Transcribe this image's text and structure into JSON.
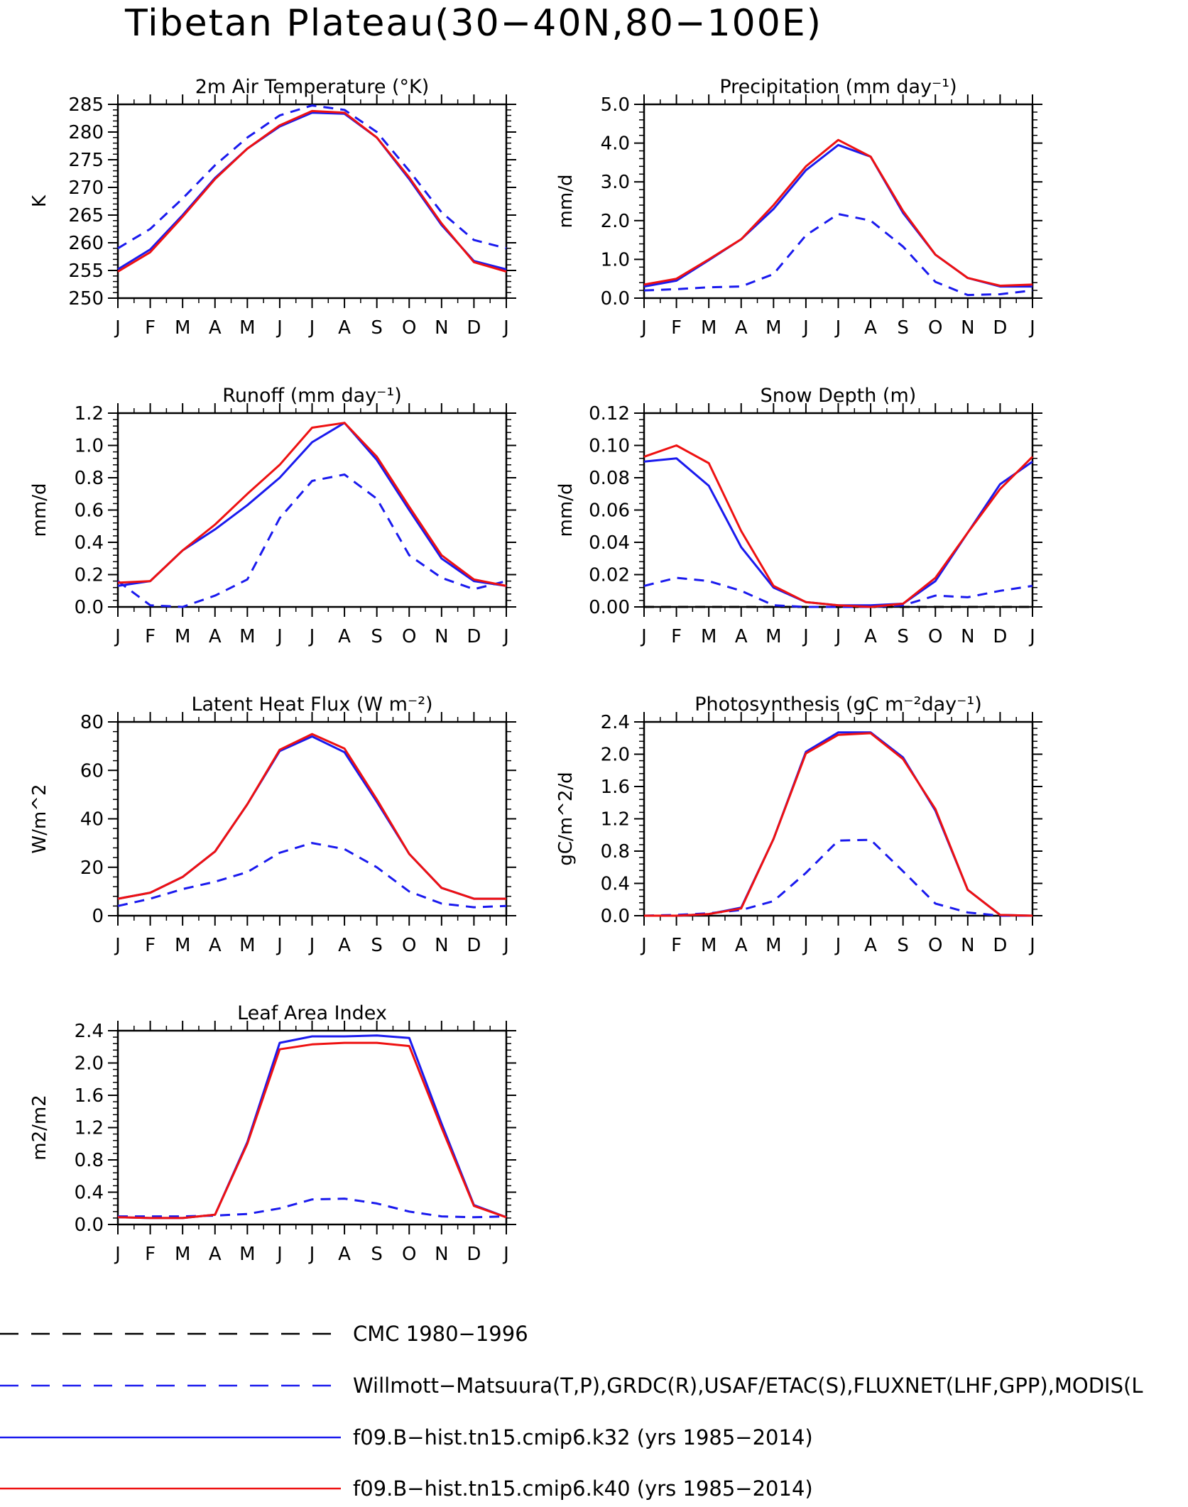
{
  "page_title": "Tibetan Plateau(30−40N,80−100E)",
  "months": [
    "J",
    "F",
    "M",
    "A",
    "M",
    "J",
    "J",
    "A",
    "S",
    "O",
    "N",
    "D",
    "J"
  ],
  "colors": {
    "obs": "#1a1aee",
    "k32": "#1a1aee",
    "k40": "#ee1111",
    "cmc": "#000000"
  },
  "legend": [
    {
      "label": "CMC 1980−1996",
      "color": "#000000",
      "dash": "dashed-long"
    },
    {
      "label": "Willmott−Matsuura(T,P),GRDC(R),USAF/ETAC(S),FLUXNET(LHF,GPP),MODIS(L",
      "color": "#1a1aee",
      "dash": "dashed-long"
    },
    {
      "label": "f09.B−hist.tn15.cmip6.k32 (yrs 1985−2014)",
      "color": "#1a1aee",
      "dash": "solid"
    },
    {
      "label": "f09.B−hist.tn15.cmip6.k40 (yrs 1985−2014)",
      "color": "#ee1111",
      "dash": "solid"
    }
  ],
  "chart_data": [
    {
      "type": "line",
      "title": "2m Air Temperature (°K)",
      "ylabel": "K",
      "ylim": [
        250,
        285
      ],
      "yticks": [
        "250",
        "255",
        "260",
        "265",
        "270",
        "275",
        "280",
        "285"
      ],
      "x": [
        "J",
        "F",
        "M",
        "A",
        "M",
        "J",
        "J",
        "A",
        "S",
        "O",
        "N",
        "D",
        "J"
      ],
      "series": [
        {
          "key": "obs",
          "style": "dashed",
          "values": [
            259,
            262.5,
            268,
            274,
            279,
            283,
            284.8,
            284,
            280,
            273,
            265.5,
            260.5,
            259
          ]
        },
        {
          "key": "k32",
          "style": "solid",
          "values": [
            255.2,
            258.8,
            265,
            271.7,
            277,
            281,
            283.5,
            283.3,
            279,
            271.5,
            263.2,
            256.7,
            255.2
          ]
        },
        {
          "key": "k40",
          "style": "solid",
          "values": [
            254.8,
            258.3,
            264.7,
            271.5,
            277,
            281.2,
            283.8,
            283.5,
            279,
            271.8,
            263.5,
            256.5,
            254.8
          ]
        }
      ]
    },
    {
      "type": "line",
      "title": "Precipitation (mm day⁻¹)",
      "ylabel": "mm/d",
      "ylim": [
        0,
        5
      ],
      "yticks": [
        "0.0",
        "1.0",
        "2.0",
        "3.0",
        "4.0",
        "5.0"
      ],
      "x": [
        "J",
        "F",
        "M",
        "A",
        "M",
        "J",
        "J",
        "A",
        "S",
        "O",
        "N",
        "D",
        "J"
      ],
      "series": [
        {
          "key": "obs",
          "style": "dashed",
          "values": [
            0.2,
            0.23,
            0.28,
            0.3,
            0.62,
            1.62,
            2.17,
            2,
            1.33,
            0.42,
            0.08,
            0.1,
            0.2
          ]
        },
        {
          "key": "k32",
          "style": "solid",
          "values": [
            0.3,
            0.45,
            0.98,
            1.52,
            2.3,
            3.3,
            3.95,
            3.65,
            2.2,
            1.12,
            0.52,
            0.3,
            0.3
          ]
        },
        {
          "key": "k40",
          "style": "solid",
          "values": [
            0.35,
            0.5,
            1,
            1.52,
            2.4,
            3.4,
            4.08,
            3.65,
            2.25,
            1.12,
            0.52,
            0.32,
            0.35
          ]
        }
      ]
    },
    {
      "type": "line",
      "title": "Runoff (mm day⁻¹)",
      "ylabel": "mm/d",
      "ylim": [
        0,
        1.2
      ],
      "yticks": [
        "0.0",
        "0.2",
        "0.4",
        "0.6",
        "0.8",
        "1.0",
        "1.2"
      ],
      "x": [
        "J",
        "F",
        "M",
        "A",
        "M",
        "J",
        "J",
        "A",
        "S",
        "O",
        "N",
        "D",
        "J"
      ],
      "series": [
        {
          "key": "obs",
          "style": "dashed",
          "values": [
            0.16,
            0.01,
            0,
            0.07,
            0.17,
            0.55,
            0.78,
            0.82,
            0.67,
            0.32,
            0.18,
            0.11,
            0.16
          ]
        },
        {
          "key": "k32",
          "style": "solid",
          "values": [
            0.13,
            0.16,
            0.35,
            0.48,
            0.63,
            0.8,
            1.02,
            1.14,
            0.91,
            0.6,
            0.3,
            0.16,
            0.13
          ]
        },
        {
          "key": "k40",
          "style": "solid",
          "values": [
            0.15,
            0.16,
            0.35,
            0.51,
            0.7,
            0.88,
            1.11,
            1.14,
            0.93,
            0.62,
            0.32,
            0.17,
            0.13
          ]
        }
      ]
    },
    {
      "type": "line",
      "title": "Snow Depth (m)",
      "ylabel": "mm/d",
      "ylim": [
        0,
        0.12
      ],
      "yticks": [
        "0.00",
        "0.02",
        "0.04",
        "0.06",
        "0.08",
        "0.10",
        "0.12"
      ],
      "x": [
        "J",
        "F",
        "M",
        "A",
        "M",
        "J",
        "J",
        "A",
        "S",
        "O",
        "N",
        "D",
        "J"
      ],
      "series": [
        {
          "key": "cmc",
          "style": "dashed",
          "values": [
            0,
            0,
            0,
            0,
            0,
            0,
            0,
            0,
            0,
            0,
            0,
            0,
            0
          ]
        },
        {
          "key": "obs",
          "style": "dashed",
          "values": [
            0.013,
            0.018,
            0.016,
            0.01,
            0.001,
            0,
            0,
            0,
            0.001,
            0.007,
            0.006,
            0.01,
            0.013
          ]
        },
        {
          "key": "k32",
          "style": "solid",
          "values": [
            0.09,
            0.092,
            0.075,
            0.037,
            0.012,
            0.003,
            0.001,
            0.001,
            0.002,
            0.016,
            0.046,
            0.076,
            0.09
          ]
        },
        {
          "key": "k40",
          "style": "solid",
          "values": [
            0.093,
            0.1,
            0.089,
            0.047,
            0.013,
            0.003,
            0.001,
            0,
            0.002,
            0.018,
            0.046,
            0.073,
            0.093
          ]
        }
      ]
    },
    {
      "type": "line",
      "title": "Latent Heat Flux (W m⁻²)",
      "ylabel": "W/m^2",
      "ylim": [
        0,
        80
      ],
      "yticks": [
        "0",
        "20",
        "40",
        "60",
        "80"
      ],
      "x": [
        "J",
        "F",
        "M",
        "A",
        "M",
        "J",
        "J",
        "A",
        "S",
        "O",
        "N",
        "D",
        "J"
      ],
      "series": [
        {
          "key": "obs",
          "style": "dashed",
          "values": [
            4,
            7,
            11,
            14,
            18,
            26,
            30,
            27.5,
            20,
            10,
            5,
            3.5,
            4
          ]
        },
        {
          "key": "k32",
          "style": "solid",
          "values": [
            7,
            9.5,
            16,
            26.5,
            46,
            68,
            74,
            67.5,
            47,
            25.5,
            11.5,
            7,
            7
          ]
        },
        {
          "key": "k40",
          "style": "solid",
          "values": [
            7,
            9.5,
            16,
            26.5,
            46,
            68.5,
            75,
            69,
            48,
            25.5,
            11.5,
            7,
            7
          ]
        }
      ]
    },
    {
      "type": "line",
      "title": "Photosynthesis (gC m⁻²day⁻¹)",
      "ylabel": "gC/m^2/d",
      "ylim": [
        0,
        2.4
      ],
      "yticks": [
        "0.0",
        "0.4",
        "0.8",
        "1.2",
        "1.6",
        "2.0",
        "2.4"
      ],
      "x": [
        "J",
        "F",
        "M",
        "A",
        "M",
        "J",
        "J",
        "A",
        "S",
        "O",
        "N",
        "D",
        "J"
      ],
      "series": [
        {
          "key": "obs",
          "style": "dashed",
          "values": [
            0,
            0.01,
            0.03,
            0.07,
            0.18,
            0.53,
            0.93,
            0.94,
            0.55,
            0.15,
            0.04,
            0,
            0
          ]
        },
        {
          "key": "k32",
          "style": "solid",
          "values": [
            0,
            0,
            0.02,
            0.1,
            0.95,
            2.03,
            2.27,
            2.27,
            1.96,
            1.3,
            0.32,
            0.01,
            0
          ]
        },
        {
          "key": "k40",
          "style": "solid",
          "values": [
            0,
            0,
            0.02,
            0.09,
            0.95,
            2.01,
            2.24,
            2.26,
            1.94,
            1.32,
            0.32,
            0.01,
            0
          ]
        }
      ]
    },
    {
      "type": "line",
      "title": "Leaf Area Index",
      "ylabel": "m2/m2",
      "ylim": [
        0,
        2.4
      ],
      "yticks": [
        "0.0",
        "0.4",
        "0.8",
        "1.2",
        "1.6",
        "2.0",
        "2.4"
      ],
      "x": [
        "J",
        "F",
        "M",
        "A",
        "M",
        "J",
        "J",
        "A",
        "S",
        "O",
        "N",
        "D",
        "J"
      ],
      "series": [
        {
          "key": "obs",
          "style": "dashed",
          "values": [
            0.1,
            0.1,
            0.1,
            0.11,
            0.13,
            0.2,
            0.31,
            0.32,
            0.26,
            0.16,
            0.1,
            0.09,
            0.1
          ]
        },
        {
          "key": "k32",
          "style": "solid",
          "values": [
            0.09,
            0.08,
            0.08,
            0.12,
            1.02,
            2.25,
            2.33,
            2.33,
            2.34,
            2.31,
            1.25,
            0.24,
            0.09
          ]
        },
        {
          "key": "k40",
          "style": "solid",
          "values": [
            0.09,
            0.08,
            0.08,
            0.12,
            1,
            2.17,
            2.23,
            2.25,
            2.25,
            2.21,
            1.2,
            0.23,
            0.09
          ]
        }
      ]
    }
  ]
}
